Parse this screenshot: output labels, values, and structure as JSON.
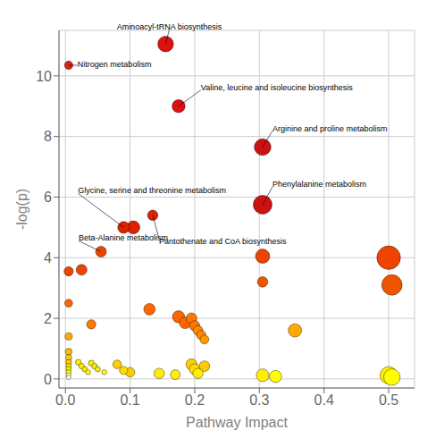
{
  "chart_data": {
    "type": "scatter",
    "xlabel": "Pathway Impact",
    "ylabel": "-log(p)",
    "xlim": [
      -0.01,
      0.54
    ],
    "ylim": [
      -0.3,
      11.5
    ],
    "xticks": [
      {
        "value": 0.0,
        "label": "0.0"
      },
      0.1,
      0.2,
      0.3,
      0.4,
      0.5
    ],
    "yticks": [
      0,
      2,
      4,
      6,
      8,
      10
    ],
    "grid": true,
    "x": [
      0.155,
      0.005,
      0.175,
      0.305,
      0.305,
      0.09,
      0.105,
      0.135,
      0.055,
      0.025,
      0.005,
      0.305,
      0.5,
      0.505,
      0.305,
      0.005,
      0.04,
      0.13,
      0.175,
      0.185,
      0.195,
      0.2,
      0.205,
      0.21,
      0.215,
      0.355,
      0.005,
      0.005,
      0.005,
      0.005,
      0.005,
      0.005,
      0.005,
      0.005,
      0.005,
      0.02,
      0.025,
      0.03,
      0.035,
      0.04,
      0.045,
      0.05,
      0.06,
      0.08,
      0.09,
      0.1,
      0.145,
      0.17,
      0.195,
      0.2,
      0.205,
      0.215,
      0.305,
      0.325,
      0.5,
      0.505
    ],
    "values": [
      11.05,
      10.35,
      9.0,
      7.65,
      5.75,
      5.0,
      5.0,
      5.4,
      4.2,
      3.6,
      3.55,
      4.05,
      4.0,
      3.1,
      3.2,
      2.5,
      1.8,
      2.3,
      2.05,
      1.85,
      2.0,
      1.75,
      1.6,
      1.45,
      1.3,
      1.6,
      1.4,
      0.9,
      0.7,
      0.55,
      0.42,
      0.32,
      0.22,
      0.13,
      0.05,
      0.55,
      0.42,
      0.32,
      0.22,
      0.52,
      0.42,
      0.32,
      0.22,
      0.48,
      0.28,
      0.22,
      0.18,
      0.14,
      0.48,
      0.32,
      0.18,
      0.42,
      0.12,
      0.08,
      0.12,
      0.06
    ],
    "sizes": [
      160,
      45,
      110,
      180,
      230,
      90,
      110,
      70,
      75,
      75,
      55,
      130,
      360,
      270,
      70,
      40,
      55,
      85,
      95,
      85,
      75,
      68,
      60,
      55,
      50,
      115,
      35,
      30,
      25,
      22,
      20,
      18,
      16,
      14,
      12,
      22,
      20,
      18,
      16,
      22,
      20,
      18,
      16,
      48,
      44,
      58,
      70,
      62,
      80,
      75,
      68,
      72,
      105,
      95,
      195,
      175
    ],
    "colors": [
      "#dd1111",
      "#dd2211",
      "#dd1111",
      "#cc1111",
      "#cc1111",
      "#dd2200",
      "#dd2200",
      "#dd2200",
      "#ee4400",
      "#ee4400",
      "#ee4400",
      "#ee4400",
      "#ee4400",
      "#ee5500",
      "#ee5500",
      "#ff6600",
      "#ff7700",
      "#ff6600",
      "#ff6600",
      "#ff6600",
      "#ff7700",
      "#ff7700",
      "#ff8800",
      "#ff8800",
      "#ff9900",
      "#ffaa00",
      "#ffaa00",
      "#ffbb00",
      "#ffcc00",
      "#ffcc00",
      "#ffdd00",
      "#ffee00",
      "#ffff00",
      "#ffffaa",
      "#ffffff",
      "#ffee00",
      "#ffee00",
      "#ffee00",
      "#ffff00",
      "#ffee00",
      "#ffee00",
      "#ffee00",
      "#ffff00",
      "#ffcc00",
      "#ffdd00",
      "#ffcc00",
      "#ffee00",
      "#ffee00",
      "#ffcc00",
      "#ffdd00",
      "#ffee00",
      "#ffcc00",
      "#ffee00",
      "#ffff00",
      "#ffee00",
      "#ffff00"
    ],
    "annotations": [
      {
        "text": "Aminoacyl-tRNA biosynthesis",
        "x": 0.155,
        "y": 11.05
      },
      {
        "text": "Nitrogen metabolism",
        "x": 0.005,
        "y": 10.35
      },
      {
        "text": "Valine, leucine and isoleucine biosynthesis",
        "x": 0.175,
        "y": 9.0
      },
      {
        "text": "Arginine and proline metabolism",
        "x": 0.305,
        "y": 7.65
      },
      {
        "text": "Phenylalanine metabolism",
        "x": 0.305,
        "y": 5.75
      },
      {
        "text": "Glycine, serine and threonine metabolism",
        "x": 0.09,
        "y": 5.0
      },
      {
        "text": "Pantothenate and CoA biosynthesis",
        "x": 0.135,
        "y": 5.4
      },
      {
        "text": "Beta-Alanine metabolism",
        "x": 0.055,
        "y": 4.2
      }
    ]
  }
}
